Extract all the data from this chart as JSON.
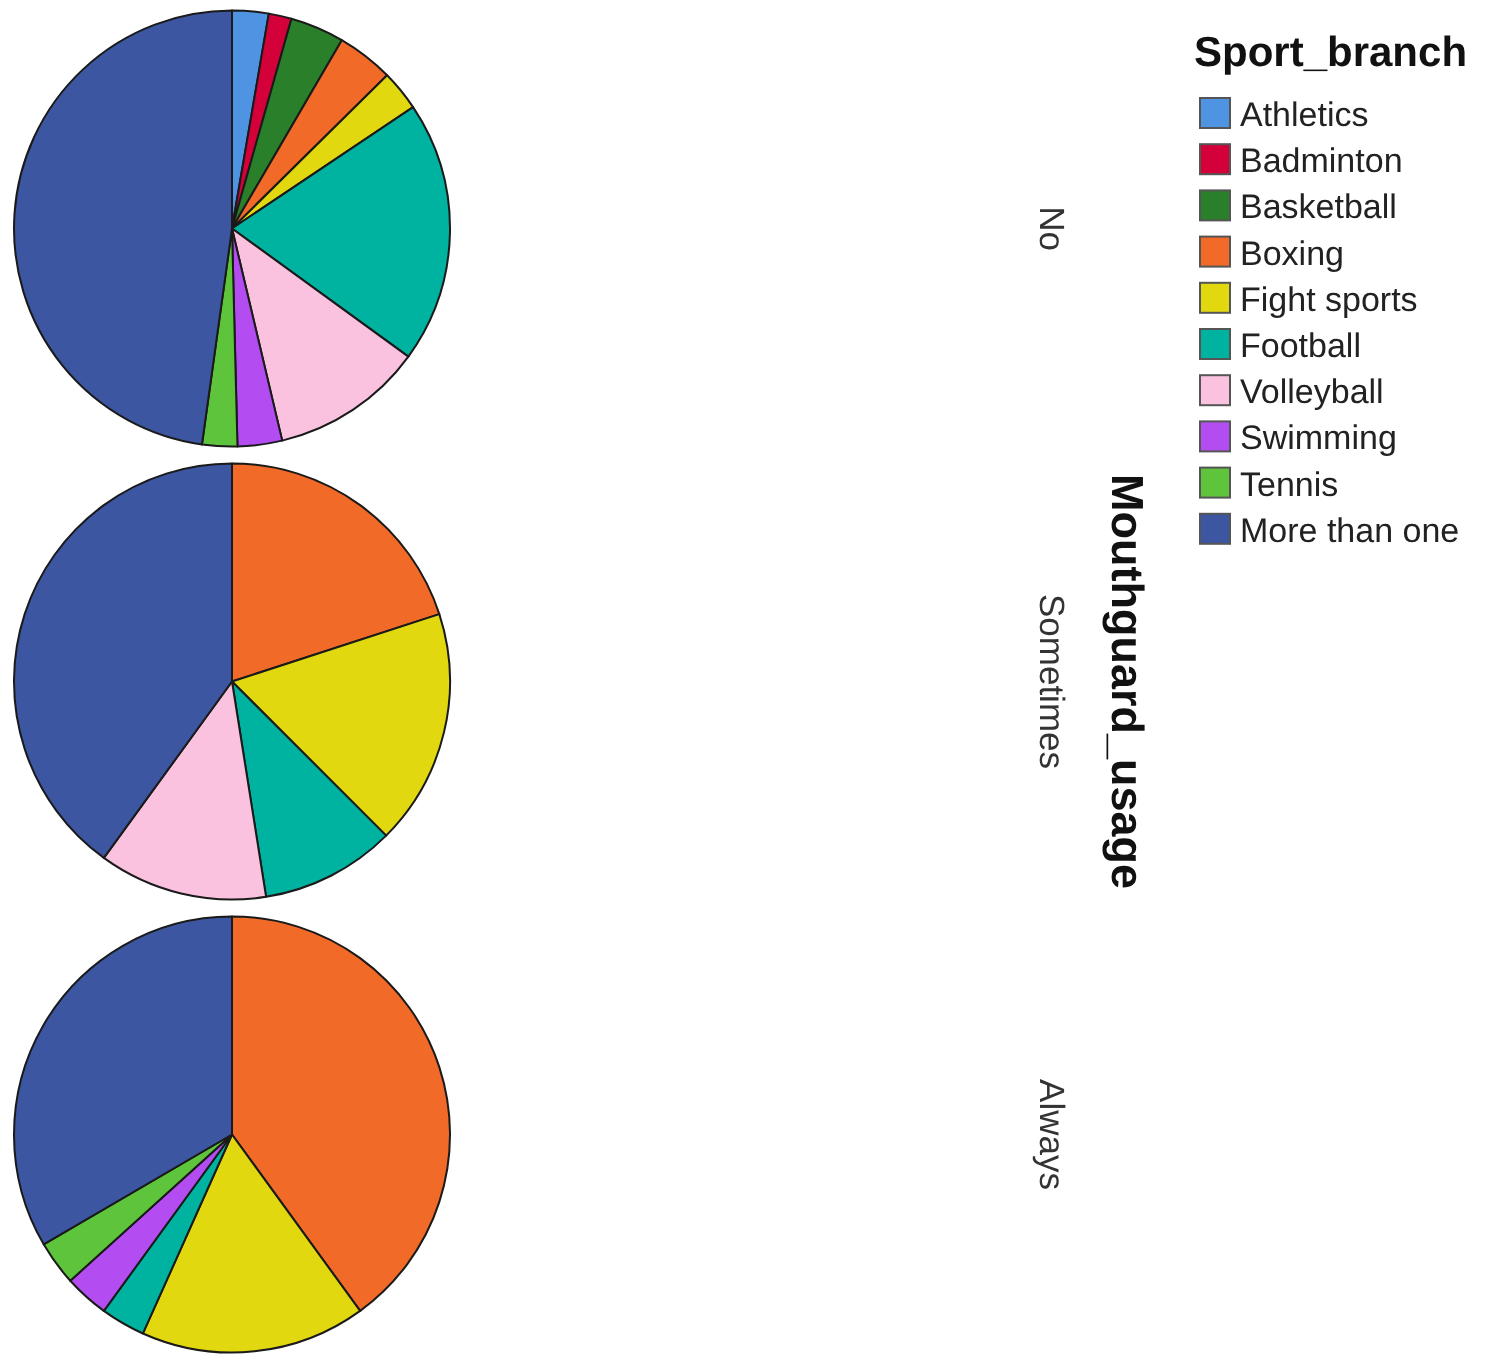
{
  "chart_data": {
    "type": "pie",
    "categories": [
      "Athletics",
      "Badminton",
      "Basketball",
      "Boxing",
      "Fight sports",
      "Football",
      "Volleyball",
      "Swimming",
      "Tennis",
      "More than one"
    ],
    "colors": [
      "#4f94e3",
      "#d3003a",
      "#2a7f2a",
      "#f26a27",
      "#e2d80f",
      "#00b3a0",
      "#fbc2e0",
      "#b34df2",
      "#5dc43b",
      "#3c56a1"
    ],
    "series": [
      {
        "name": "No",
        "values": [
          2.7,
          1.7,
          4,
          4.2,
          3,
          19.4,
          11.3,
          3.3,
          2.6,
          47.8
        ]
      },
      {
        "name": "Sometimes",
        "values": [
          null,
          null,
          null,
          20,
          17.5,
          10,
          12.5,
          null,
          null,
          40
        ]
      },
      {
        "name": "Always",
        "values": [
          null,
          null,
          null,
          40,
          16.7,
          3.3,
          null,
          3.3,
          3.3,
          33.4
        ]
      }
    ],
    "legend": "right",
    "legend_title": "Sport_branch",
    "y2label": "Mouthguard_usage"
  }
}
